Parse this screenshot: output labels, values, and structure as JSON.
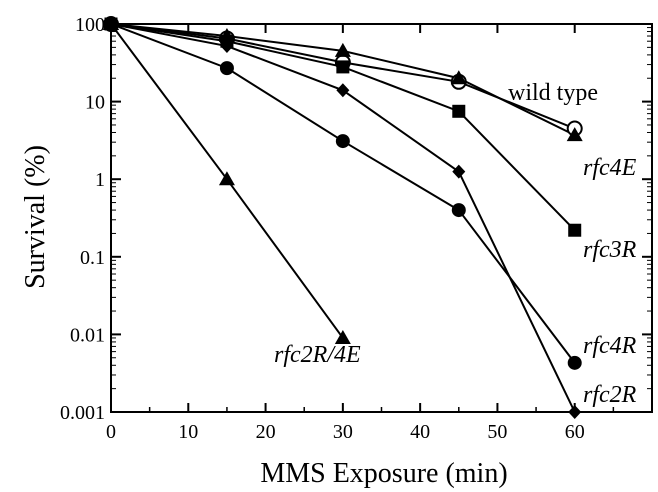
{
  "chart_data": {
    "type": "line",
    "xlabel": "MMS Exposure (min)",
    "ylabel": "Survival (%)",
    "xlim": [
      0,
      70
    ],
    "ylim": [
      0.001,
      100
    ],
    "yscale": "log",
    "x_ticks": [
      0,
      10,
      20,
      30,
      40,
      50,
      60
    ],
    "y_ticks": [
      {
        "value": 100,
        "label": "100"
      },
      {
        "value": 10,
        "label": "10"
      },
      {
        "value": 1,
        "label": "1"
      },
      {
        "value": 0.1,
        "label": "0.1"
      },
      {
        "value": 0.01,
        "label": "0.01"
      },
      {
        "value": 0.001,
        "label": "0.001"
      }
    ],
    "grid": false,
    "series": [
      {
        "name": "wild type",
        "marker": "open-circle",
        "italic": false,
        "x": [
          0,
          15,
          30,
          45,
          60
        ],
        "y": [
          100,
          65,
          32,
          18,
          4.5
        ]
      },
      {
        "name": "rfc4E",
        "marker": "triangle",
        "italic": true,
        "x": [
          0,
          15,
          30,
          45,
          60
        ],
        "y": [
          100,
          70,
          45,
          20,
          3.7
        ]
      },
      {
        "name": "rfc3R",
        "marker": "square",
        "italic": true,
        "x": [
          0,
          15,
          30,
          45,
          60
        ],
        "y": [
          100,
          60,
          28,
          7.5,
          0.22
        ]
      },
      {
        "name": "rfc4R",
        "marker": "circle",
        "italic": true,
        "x": [
          0,
          15,
          30,
          45,
          60
        ],
        "y": [
          100,
          27,
          3.1,
          0.4,
          0.0043
        ]
      },
      {
        "name": "rfc2R",
        "marker": "diamond",
        "italic": true,
        "x": [
          0,
          15,
          30,
          45,
          60
        ],
        "y": [
          100,
          52,
          14,
          1.25,
          0.001
        ]
      },
      {
        "name": "rfc2R/4E",
        "marker": "triangle",
        "italic": true,
        "x": [
          0,
          15,
          30
        ],
        "y": [
          100,
          1.0,
          0.009
        ]
      }
    ]
  }
}
